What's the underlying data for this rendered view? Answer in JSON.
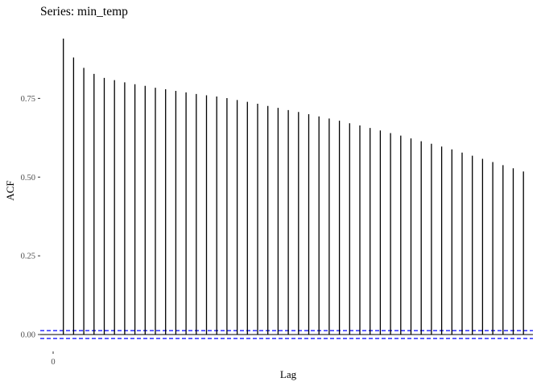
{
  "chart_data": {
    "type": "bar",
    "title": "Series: min_temp",
    "xlabel": "Lag",
    "ylabel": "ACF",
    "x_ticks": [
      0
    ],
    "y_ticks": [
      0.0,
      0.25,
      0.5,
      0.75
    ],
    "y_tick_labels": [
      "0.00",
      "0.25",
      "0.50",
      "0.75"
    ],
    "ylim": [
      -0.02,
      0.96
    ],
    "xlim": [
      0,
      47
    ],
    "grid": false,
    "confidence_bound": 0.0125,
    "colors": {
      "bars": "#000000",
      "zero_line": "#000000",
      "confidence": "#0000ff"
    },
    "x": [
      1,
      2,
      3,
      4,
      5,
      6,
      7,
      8,
      9,
      10,
      11,
      12,
      13,
      14,
      15,
      16,
      17,
      18,
      19,
      20,
      21,
      22,
      23,
      24,
      25,
      26,
      27,
      28,
      29,
      30,
      31,
      32,
      33,
      34,
      35,
      36,
      37,
      38,
      39,
      40,
      41,
      42,
      43,
      44,
      45,
      46
    ],
    "values": [
      0.94,
      0.88,
      0.847,
      0.828,
      0.815,
      0.808,
      0.801,
      0.795,
      0.79,
      0.784,
      0.779,
      0.774,
      0.769,
      0.764,
      0.76,
      0.756,
      0.751,
      0.745,
      0.739,
      0.733,
      0.726,
      0.72,
      0.713,
      0.707,
      0.7,
      0.693,
      0.686,
      0.679,
      0.671,
      0.664,
      0.656,
      0.648,
      0.64,
      0.632,
      0.623,
      0.614,
      0.606,
      0.597,
      0.588,
      0.578,
      0.568,
      0.558,
      0.548,
      0.538,
      0.528,
      0.518
    ]
  }
}
